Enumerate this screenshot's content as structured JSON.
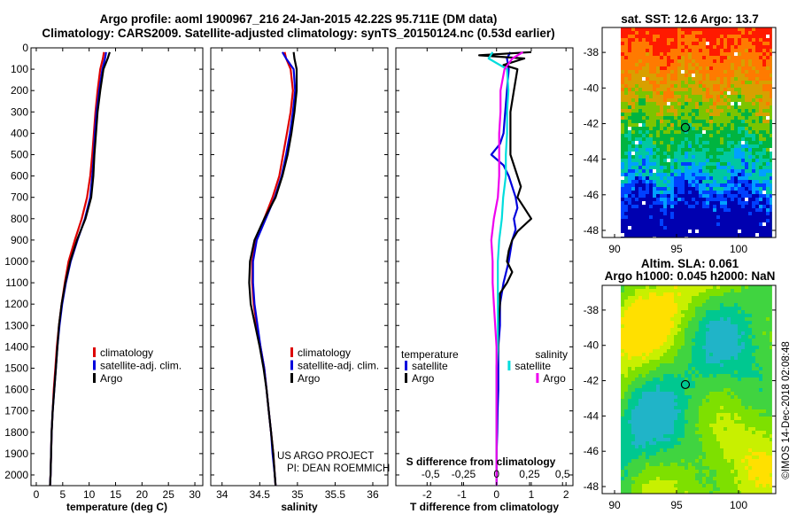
{
  "chart_data": [
    {
      "type": "line",
      "title": "Argo profile: aoml 1900967_216 24-Jan-2015 42.22S 95.711E (DM data)",
      "subtitle": "Climatology: CARS2009. Satellite-adjusted climatology: synTS_20150124.nc (0.53d earlier)",
      "xlabel": "temperature (deg C)",
      "ylabel": "",
      "xlim": [
        -1,
        31.5
      ],
      "ylim": [
        2050,
        0
      ],
      "xticks": [
        "0",
        "5",
        "10",
        "15",
        "20",
        "25",
        "30"
      ],
      "yticks": [
        "0",
        "100",
        "200",
        "300",
        "400",
        "500",
        "600",
        "700",
        "800",
        "900",
        "1000",
        "1100",
        "1200",
        "1300",
        "1400",
        "1500",
        "1600",
        "1700",
        "1800",
        "1900",
        "2000"
      ],
      "legend": [
        "climatology",
        "satellite-adj. clim.",
        "Argo"
      ],
      "colors": [
        "#dd0000",
        "#0000dd",
        "#000000"
      ],
      "series": [
        {
          "name": "climatology",
          "depth": [
            20,
            50,
            100,
            200,
            300,
            400,
            500,
            600,
            700,
            800,
            900,
            1000,
            1100,
            1200,
            1300,
            1400,
            1500,
            1600,
            1700,
            1800,
            1900,
            2000,
            2050
          ],
          "values": [
            12.8,
            12.6,
            12.1,
            11.6,
            11.2,
            10.9,
            10.6,
            10.2,
            9.6,
            8.6,
            7.3,
            6.1,
            5.4,
            4.8,
            4.3,
            3.9,
            3.6,
            3.3,
            3.1,
            2.9,
            2.8,
            2.7,
            2.6
          ]
        },
        {
          "name": "satellite-adj. clim.",
          "depth": [
            20,
            50,
            100,
            200,
            300,
            400,
            500,
            600,
            700,
            800,
            900,
            1000,
            1100,
            1200,
            1300,
            1400,
            1500,
            1600,
            1700,
            1800,
            1900,
            2000,
            2050
          ],
          "values": [
            13.2,
            13.0,
            12.5,
            11.9,
            11.4,
            11.1,
            10.9,
            10.6,
            10.2,
            9.2,
            7.8,
            6.5,
            5.6,
            4.9,
            4.4,
            4.0,
            3.7,
            3.4,
            3.1,
            2.9,
            2.8,
            2.7,
            2.6
          ]
        },
        {
          "name": "Argo",
          "depth": [
            20,
            50,
            100,
            200,
            300,
            400,
            500,
            600,
            700,
            800,
            900,
            1000,
            1100,
            1200,
            1300,
            1400,
            1500,
            1600,
            1700,
            1800,
            1900,
            2000,
            2050
          ],
          "values": [
            13.9,
            13.5,
            12.7,
            12.1,
            11.6,
            11.3,
            11.0,
            10.8,
            10.4,
            9.3,
            7.7,
            6.4,
            5.5,
            4.8,
            4.3,
            4.0,
            3.7,
            3.4,
            3.1,
            2.9,
            2.8,
            2.7,
            2.6
          ]
        }
      ]
    },
    {
      "type": "line",
      "xlabel": "salinity",
      "xlim": [
        33.85,
        36.2
      ],
      "ylim": [
        2050,
        0
      ],
      "xticks": [
        "34",
        "34.5",
        "35",
        "35.5",
        "36"
      ],
      "legend": [
        "climatology",
        "satellite-adj. clim.",
        "Argo"
      ],
      "colors": [
        "#dd0000",
        "#0000dd",
        "#000000"
      ],
      "annotations": [
        "US ARGO PROJECT",
        "PI: DEAN ROEMMICH"
      ],
      "series": [
        {
          "name": "climatology",
          "depth": [
            20,
            50,
            100,
            200,
            300,
            400,
            500,
            600,
            700,
            800,
            900,
            1000,
            1100,
            1200,
            1300,
            1400,
            1500,
            1600,
            1700,
            1800,
            1900,
            2000,
            2050
          ],
          "values": [
            34.83,
            34.85,
            34.91,
            34.94,
            34.91,
            34.86,
            34.81,
            34.76,
            34.67,
            34.56,
            34.45,
            34.4,
            34.4,
            34.42,
            34.46,
            34.51,
            34.56,
            34.59,
            34.62,
            34.65,
            34.68,
            34.7,
            34.71
          ]
        },
        {
          "name": "satellite-adj. clim.",
          "depth": [
            20,
            50,
            100,
            200,
            300,
            400,
            500,
            600,
            700,
            800,
            900,
            1000,
            1100,
            1200,
            1300,
            1400,
            1500,
            1600,
            1700,
            1800,
            1900,
            2000,
            2050
          ],
          "values": [
            34.8,
            34.85,
            34.95,
            34.97,
            34.94,
            34.9,
            34.85,
            34.79,
            34.7,
            34.58,
            34.46,
            34.41,
            34.41,
            34.43,
            34.47,
            34.51,
            34.56,
            34.59,
            34.62,
            34.65,
            34.67,
            34.7,
            34.71
          ]
        },
        {
          "name": "Argo",
          "depth": [
            20,
            50,
            100,
            200,
            300,
            400,
            500,
            600,
            700,
            800,
            900,
            1000,
            1100,
            1200,
            1300,
            1400,
            1500,
            1600,
            1700,
            1800,
            1900,
            2000,
            2050
          ],
          "values": [
            34.95,
            34.96,
            34.99,
            34.99,
            34.96,
            34.92,
            34.87,
            34.8,
            34.71,
            34.56,
            34.43,
            34.37,
            34.36,
            34.38,
            34.44,
            34.5,
            34.55,
            34.59,
            34.62,
            34.65,
            34.68,
            34.7,
            34.71
          ]
        }
      ]
    },
    {
      "type": "line",
      "xlabel": "T difference from climatology",
      "secondary_xlabel": "S difference from climatology",
      "xlim": [
        -2.9,
        2.2
      ],
      "ylim": [
        2050,
        0
      ],
      "xticks": [
        "-2",
        "-1",
        "0",
        "1",
        "2"
      ],
      "secondary_xticks": [
        "-0.5",
        "-0.25",
        "0",
        "0.25",
        "0.5"
      ],
      "legend_titles": [
        "temperature",
        "salinity"
      ],
      "legend": [
        "satellite",
        "Argo",
        "satellite",
        "Argo"
      ],
      "colors": [
        "#0000dd",
        "#000000",
        "#00dddd",
        "#ee00ee"
      ],
      "series": [
        {
          "name": "temperature satellite",
          "depth": [
            20,
            50,
            100,
            200,
            300,
            400,
            450,
            500,
            550,
            600,
            700,
            750,
            800,
            850,
            900,
            1000,
            1100,
            1200,
            1300,
            1400,
            1500,
            1600,
            1700,
            1800,
            1900,
            2000,
            2050
          ],
          "values": [
            0.4,
            0.3,
            0.35,
            0.3,
            0.25,
            0.2,
            0.1,
            -0.15,
            0.2,
            0.35,
            0.55,
            0.6,
            0.5,
            0.55,
            0.45,
            0.35,
            0.2,
            0.1,
            0.1,
            0.05,
            0.05,
            0.05,
            0.03,
            0.02,
            0.0,
            0.0,
            0.0
          ]
        },
        {
          "name": "temperature Argo",
          "depth": [
            20,
            35,
            50,
            80,
            100,
            200,
            300,
            400,
            500,
            600,
            650,
            700,
            750,
            800,
            830,
            860,
            900,
            950,
            1000,
            1050,
            1100,
            1150,
            1200,
            1300,
            1400,
            1500,
            1600,
            1700,
            1800,
            1900,
            2000,
            2050
          ],
          "values": [
            1.0,
            -0.5,
            0.8,
            0.2,
            0.6,
            0.5,
            0.4,
            0.4,
            0.4,
            0.6,
            0.7,
            0.6,
            0.8,
            1.0,
            0.8,
            0.6,
            0.45,
            0.35,
            0.3,
            0.45,
            0.3,
            0.1,
            0.1,
            0.05,
            0.05,
            0.0,
            0.0,
            0.0,
            0.0,
            0.0,
            0.0,
            0.0
          ]
        },
        {
          "name": "salinity satellite",
          "depth": [
            20,
            50,
            100,
            200,
            300,
            400,
            500,
            600,
            700,
            800,
            900,
            1000,
            1100,
            1200,
            1300,
            1400,
            1500,
            1600,
            1700,
            1800,
            1900,
            2000,
            2050
          ],
          "values": [
            -0.03,
            -0.06,
            0.08,
            0.09,
            0.08,
            0.08,
            0.07,
            0.07,
            0.05,
            0.04,
            0.02,
            0.01,
            0.01,
            0.01,
            0.01,
            0.01,
            0.0,
            0.0,
            0.0,
            0.0,
            0.0,
            0.0,
            0.0
          ]
        },
        {
          "name": "salinity Argo",
          "depth": [
            20,
            50,
            100,
            200,
            300,
            400,
            500,
            600,
            700,
            800,
            900,
            1000,
            1100,
            1200,
            1300,
            1400,
            1500,
            1600,
            1700,
            1800,
            1900,
            2000,
            2050
          ],
          "values": [
            0.2,
            0.12,
            0.06,
            0.03,
            0.03,
            0.02,
            0.02,
            0.02,
            0.01,
            -0.02,
            -0.04,
            -0.03,
            -0.03,
            -0.02,
            -0.01,
            0.0,
            0.0,
            0.0,
            0.0,
            0.0,
            0.0,
            0.0,
            0.0
          ]
        }
      ]
    },
    {
      "type": "heatmap",
      "title": "sat. SST: 12.6 Argo: 13.7",
      "xlim": [
        89,
        103
      ],
      "ylim": [
        -48.4,
        -36.6
      ],
      "xticks": [
        "90",
        "95",
        "100"
      ],
      "yticks": [
        "-38",
        "-40",
        "-42",
        "-44",
        "-46",
        "-48"
      ],
      "marker": {
        "lon": 95.711,
        "lat": -42.22
      }
    },
    {
      "type": "heatmap",
      "title": "Altim. SLA: 0.061",
      "subtitle": "Argo h1000: 0.045 h2000: NaN",
      "xlim": [
        89,
        103
      ],
      "ylim": [
        -48.4,
        -36.6
      ],
      "xticks": [
        "90",
        "95",
        "100"
      ],
      "yticks": [
        "-38",
        "-40",
        "-42",
        "-44",
        "-46",
        "-48"
      ],
      "marker": {
        "lon": 95.711,
        "lat": -42.22
      }
    }
  ],
  "footer": {
    "stamp": "©IMOS 14-Dec-2018 02:08:48"
  }
}
